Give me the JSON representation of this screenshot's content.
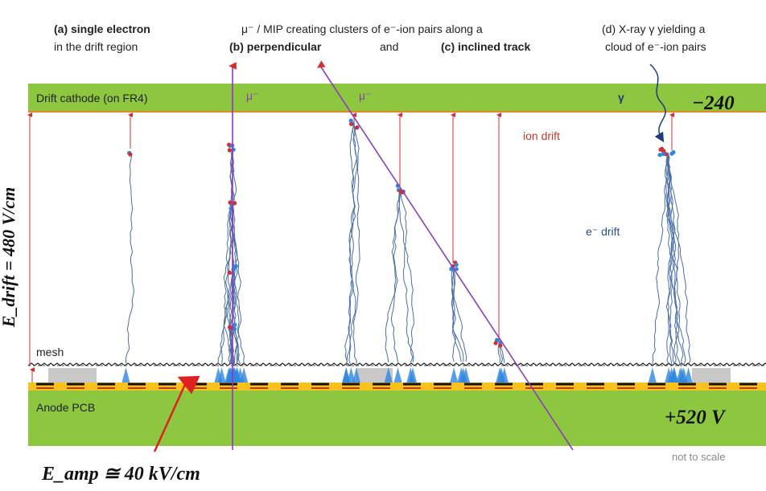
{
  "header": {
    "a_title": "(a) single electron",
    "a_sub": "in the drift region",
    "mip_line": "μ⁻ / MIP creating clusters of e⁻-ion pairs along a",
    "b_title": "(b) perpendicular",
    "and": "and",
    "c_title": "(c) inclined track",
    "d_title": "(d) X-ray γ yielding a",
    "d_sub": "cloud of e⁻-ion pairs"
  },
  "labels": {
    "cathode": "Drift cathode (on FR4)",
    "muon_1": "μ⁻",
    "muon_2": "μ⁻",
    "gamma": "γ",
    "cathode_voltage": "−240",
    "ion_drift": "ion drift",
    "e_drift": "e⁻ drift",
    "mesh": "mesh",
    "anode": "Anode PCB",
    "anode_voltage": "+520 V",
    "not_to_scale": "not to scale",
    "e_amp": "E_amp ≅ 40 kV/cm",
    "e_drift_field": "E_drift = 480 V/cm"
  }
}
